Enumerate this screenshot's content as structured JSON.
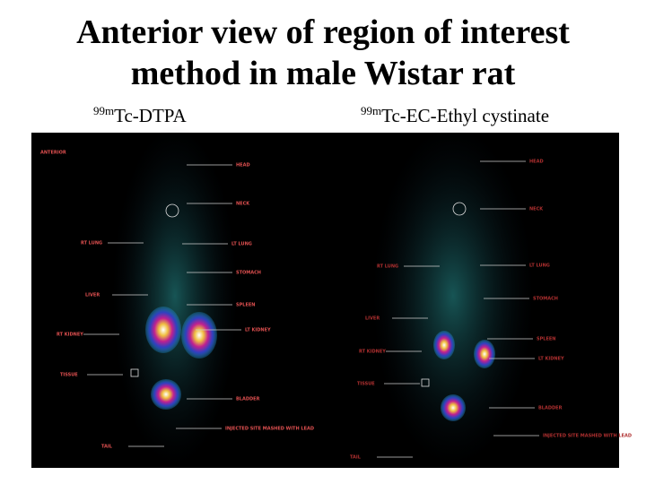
{
  "title": {
    "lines": [
      "Anterior view of region of interest",
      "method in male Wistar rat"
    ]
  },
  "panels": [
    {
      "isotope": "99m",
      "compound": "Tc-DTPA",
      "labels": [
        "ANTERIOR",
        "HEAD",
        "NECK",
        "RT LUNG",
        "LT LUNG",
        "STOMACH",
        "LIVER",
        "SPLEEN",
        "RT KIDNEY",
        "LT KIDNEY",
        "TISSUE",
        "BLADDER",
        "INJECTED SITE MASHED WITH LEAD",
        "TAIL"
      ]
    },
    {
      "isotope": "99m",
      "compound": "Tc-EC-Ethyl cystinate",
      "labels": [
        "HEAD",
        "NECK",
        "RT LUNG",
        "LT LUNG",
        "STOMACH",
        "LIVER",
        "SPLEEN",
        "RT KIDNEY",
        "LT KIDNEY",
        "TISSUE",
        "BLADDER",
        "INJECTED SITE MASHED WITH LEAD",
        "TAIL"
      ]
    }
  ]
}
